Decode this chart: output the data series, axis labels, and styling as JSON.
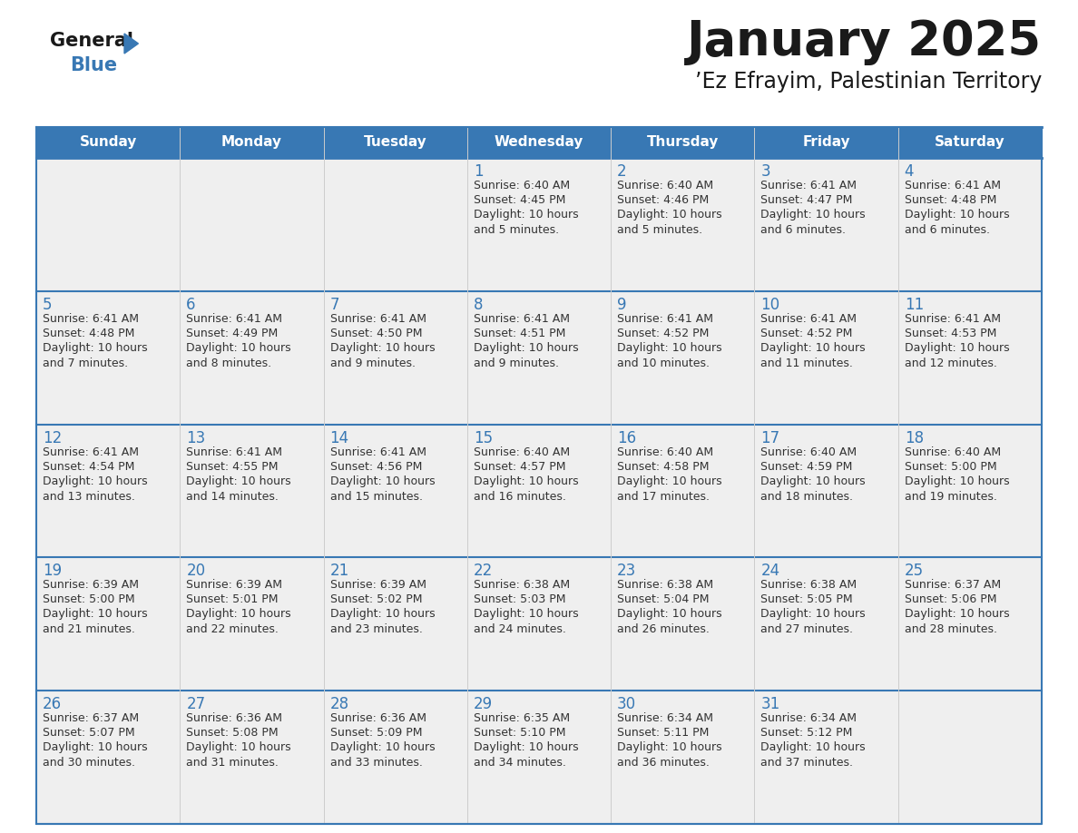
{
  "title": "January 2025",
  "subtitle": "’Ez Efrayim, Palestinian Territory",
  "days_of_week": [
    "Sunday",
    "Monday",
    "Tuesday",
    "Wednesday",
    "Thursday",
    "Friday",
    "Saturday"
  ],
  "header_bg": "#3878b4",
  "header_text": "#ffffff",
  "cell_bg": "#efefef",
  "day_number_color": "#3878b4",
  "text_color": "#333333",
  "border_color": "#3878b4",
  "logo_general_color": "#1a1a1a",
  "logo_blue_color": "#3878b4",
  "logo_triangle_color": "#3878b4",
  "calendar_data": [
    [
      {
        "day": "",
        "sunrise": "",
        "sunset": "",
        "daylight": ""
      },
      {
        "day": "",
        "sunrise": "",
        "sunset": "",
        "daylight": ""
      },
      {
        "day": "",
        "sunrise": "",
        "sunset": "",
        "daylight": ""
      },
      {
        "day": "1",
        "sunrise": "Sunrise: 6:40 AM",
        "sunset": "Sunset: 4:45 PM",
        "daylight": "Daylight: 10 hours\nand 5 minutes."
      },
      {
        "day": "2",
        "sunrise": "Sunrise: 6:40 AM",
        "sunset": "Sunset: 4:46 PM",
        "daylight": "Daylight: 10 hours\nand 5 minutes."
      },
      {
        "day": "3",
        "sunrise": "Sunrise: 6:41 AM",
        "sunset": "Sunset: 4:47 PM",
        "daylight": "Daylight: 10 hours\nand 6 minutes."
      },
      {
        "day": "4",
        "sunrise": "Sunrise: 6:41 AM",
        "sunset": "Sunset: 4:48 PM",
        "daylight": "Daylight: 10 hours\nand 6 minutes."
      }
    ],
    [
      {
        "day": "5",
        "sunrise": "Sunrise: 6:41 AM",
        "sunset": "Sunset: 4:48 PM",
        "daylight": "Daylight: 10 hours\nand 7 minutes."
      },
      {
        "day": "6",
        "sunrise": "Sunrise: 6:41 AM",
        "sunset": "Sunset: 4:49 PM",
        "daylight": "Daylight: 10 hours\nand 8 minutes."
      },
      {
        "day": "7",
        "sunrise": "Sunrise: 6:41 AM",
        "sunset": "Sunset: 4:50 PM",
        "daylight": "Daylight: 10 hours\nand 9 minutes."
      },
      {
        "day": "8",
        "sunrise": "Sunrise: 6:41 AM",
        "sunset": "Sunset: 4:51 PM",
        "daylight": "Daylight: 10 hours\nand 9 minutes."
      },
      {
        "day": "9",
        "sunrise": "Sunrise: 6:41 AM",
        "sunset": "Sunset: 4:52 PM",
        "daylight": "Daylight: 10 hours\nand 10 minutes."
      },
      {
        "day": "10",
        "sunrise": "Sunrise: 6:41 AM",
        "sunset": "Sunset: 4:52 PM",
        "daylight": "Daylight: 10 hours\nand 11 minutes."
      },
      {
        "day": "11",
        "sunrise": "Sunrise: 6:41 AM",
        "sunset": "Sunset: 4:53 PM",
        "daylight": "Daylight: 10 hours\nand 12 minutes."
      }
    ],
    [
      {
        "day": "12",
        "sunrise": "Sunrise: 6:41 AM",
        "sunset": "Sunset: 4:54 PM",
        "daylight": "Daylight: 10 hours\nand 13 minutes."
      },
      {
        "day": "13",
        "sunrise": "Sunrise: 6:41 AM",
        "sunset": "Sunset: 4:55 PM",
        "daylight": "Daylight: 10 hours\nand 14 minutes."
      },
      {
        "day": "14",
        "sunrise": "Sunrise: 6:41 AM",
        "sunset": "Sunset: 4:56 PM",
        "daylight": "Daylight: 10 hours\nand 15 minutes."
      },
      {
        "day": "15",
        "sunrise": "Sunrise: 6:40 AM",
        "sunset": "Sunset: 4:57 PM",
        "daylight": "Daylight: 10 hours\nand 16 minutes."
      },
      {
        "day": "16",
        "sunrise": "Sunrise: 6:40 AM",
        "sunset": "Sunset: 4:58 PM",
        "daylight": "Daylight: 10 hours\nand 17 minutes."
      },
      {
        "day": "17",
        "sunrise": "Sunrise: 6:40 AM",
        "sunset": "Sunset: 4:59 PM",
        "daylight": "Daylight: 10 hours\nand 18 minutes."
      },
      {
        "day": "18",
        "sunrise": "Sunrise: 6:40 AM",
        "sunset": "Sunset: 5:00 PM",
        "daylight": "Daylight: 10 hours\nand 19 minutes."
      }
    ],
    [
      {
        "day": "19",
        "sunrise": "Sunrise: 6:39 AM",
        "sunset": "Sunset: 5:00 PM",
        "daylight": "Daylight: 10 hours\nand 21 minutes."
      },
      {
        "day": "20",
        "sunrise": "Sunrise: 6:39 AM",
        "sunset": "Sunset: 5:01 PM",
        "daylight": "Daylight: 10 hours\nand 22 minutes."
      },
      {
        "day": "21",
        "sunrise": "Sunrise: 6:39 AM",
        "sunset": "Sunset: 5:02 PM",
        "daylight": "Daylight: 10 hours\nand 23 minutes."
      },
      {
        "day": "22",
        "sunrise": "Sunrise: 6:38 AM",
        "sunset": "Sunset: 5:03 PM",
        "daylight": "Daylight: 10 hours\nand 24 minutes."
      },
      {
        "day": "23",
        "sunrise": "Sunrise: 6:38 AM",
        "sunset": "Sunset: 5:04 PM",
        "daylight": "Daylight: 10 hours\nand 26 minutes."
      },
      {
        "day": "24",
        "sunrise": "Sunrise: 6:38 AM",
        "sunset": "Sunset: 5:05 PM",
        "daylight": "Daylight: 10 hours\nand 27 minutes."
      },
      {
        "day": "25",
        "sunrise": "Sunrise: 6:37 AM",
        "sunset": "Sunset: 5:06 PM",
        "daylight": "Daylight: 10 hours\nand 28 minutes."
      }
    ],
    [
      {
        "day": "26",
        "sunrise": "Sunrise: 6:37 AM",
        "sunset": "Sunset: 5:07 PM",
        "daylight": "Daylight: 10 hours\nand 30 minutes."
      },
      {
        "day": "27",
        "sunrise": "Sunrise: 6:36 AM",
        "sunset": "Sunset: 5:08 PM",
        "daylight": "Daylight: 10 hours\nand 31 minutes."
      },
      {
        "day": "28",
        "sunrise": "Sunrise: 6:36 AM",
        "sunset": "Sunset: 5:09 PM",
        "daylight": "Daylight: 10 hours\nand 33 minutes."
      },
      {
        "day": "29",
        "sunrise": "Sunrise: 6:35 AM",
        "sunset": "Sunset: 5:10 PM",
        "daylight": "Daylight: 10 hours\nand 34 minutes."
      },
      {
        "day": "30",
        "sunrise": "Sunrise: 6:34 AM",
        "sunset": "Sunset: 5:11 PM",
        "daylight": "Daylight: 10 hours\nand 36 minutes."
      },
      {
        "day": "31",
        "sunrise": "Sunrise: 6:34 AM",
        "sunset": "Sunset: 5:12 PM",
        "daylight": "Daylight: 10 hours\nand 37 minutes."
      },
      {
        "day": "",
        "sunrise": "",
        "sunset": "",
        "daylight": ""
      }
    ]
  ]
}
